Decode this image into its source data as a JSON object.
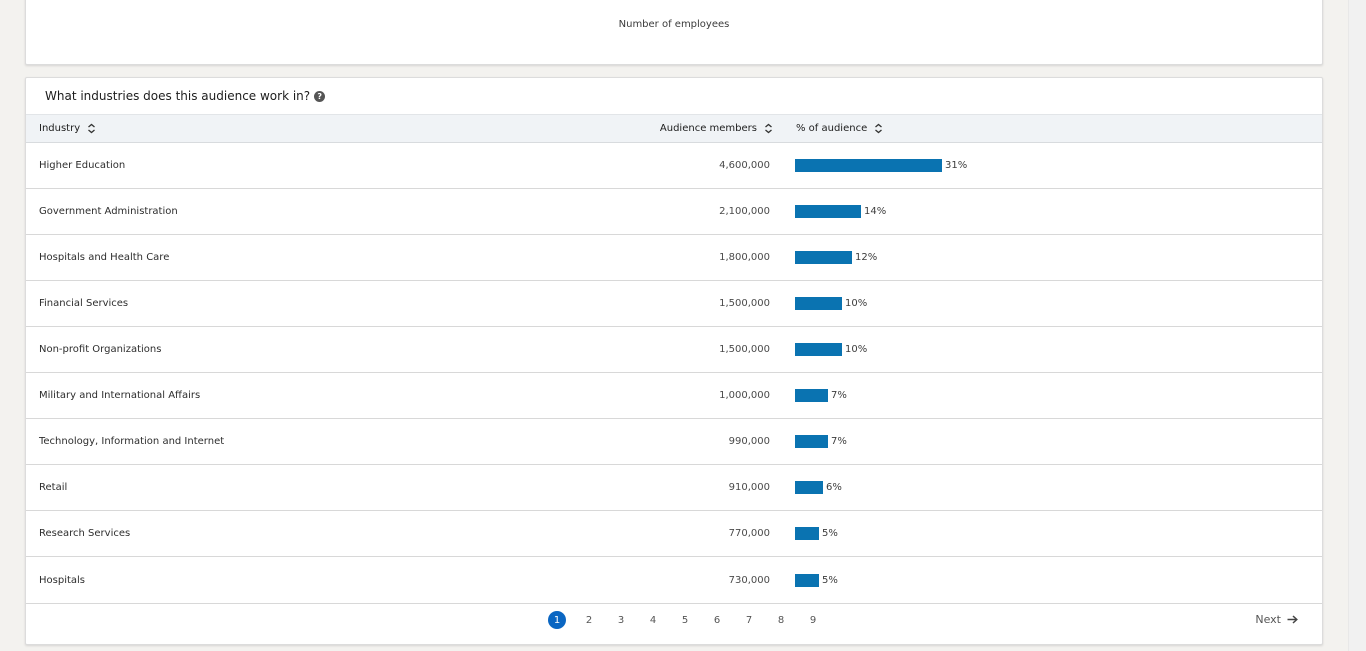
{
  "top_card": {
    "caption": "Number of employees"
  },
  "industries": {
    "title": "What industries does this audience work in?",
    "columns": {
      "industry": "Industry",
      "members": "Audience members",
      "pct": "% of audience"
    },
    "rows": [
      {
        "name": "Higher Education",
        "members": "4,600,000",
        "pct_label": "31%",
        "pct": 31
      },
      {
        "name": "Government Administration",
        "members": "2,100,000",
        "pct_label": "14%",
        "pct": 14
      },
      {
        "name": "Hospitals and Health Care",
        "members": "1,800,000",
        "pct_label": "12%",
        "pct": 12
      },
      {
        "name": "Financial Services",
        "members": "1,500,000",
        "pct_label": "10%",
        "pct": 10
      },
      {
        "name": "Non-profit Organizations",
        "members": "1,500,000",
        "pct_label": "10%",
        "pct": 10
      },
      {
        "name": "Military and International Affairs",
        "members": "1,000,000",
        "pct_label": "7%",
        "pct": 7
      },
      {
        "name": "Technology, Information and Internet",
        "members": "990,000",
        "pct_label": "7%",
        "pct": 7
      },
      {
        "name": "Retail",
        "members": "910,000",
        "pct_label": "6%",
        "pct": 6
      },
      {
        "name": "Research Services",
        "members": "770,000",
        "pct_label": "5%",
        "pct": 5
      },
      {
        "name": "Hospitals",
        "members": "730,000",
        "pct_label": "5%",
        "pct": 5
      }
    ],
    "bar_color": "#0a73b1"
  },
  "pagination": {
    "pages": [
      "1",
      "2",
      "3",
      "4",
      "5",
      "6",
      "7",
      "8",
      "9"
    ],
    "current": "1",
    "next_label": "Next"
  },
  "icons": {
    "sort": "sort-icon",
    "help": "help-icon",
    "next": "arrow-right-icon"
  }
}
